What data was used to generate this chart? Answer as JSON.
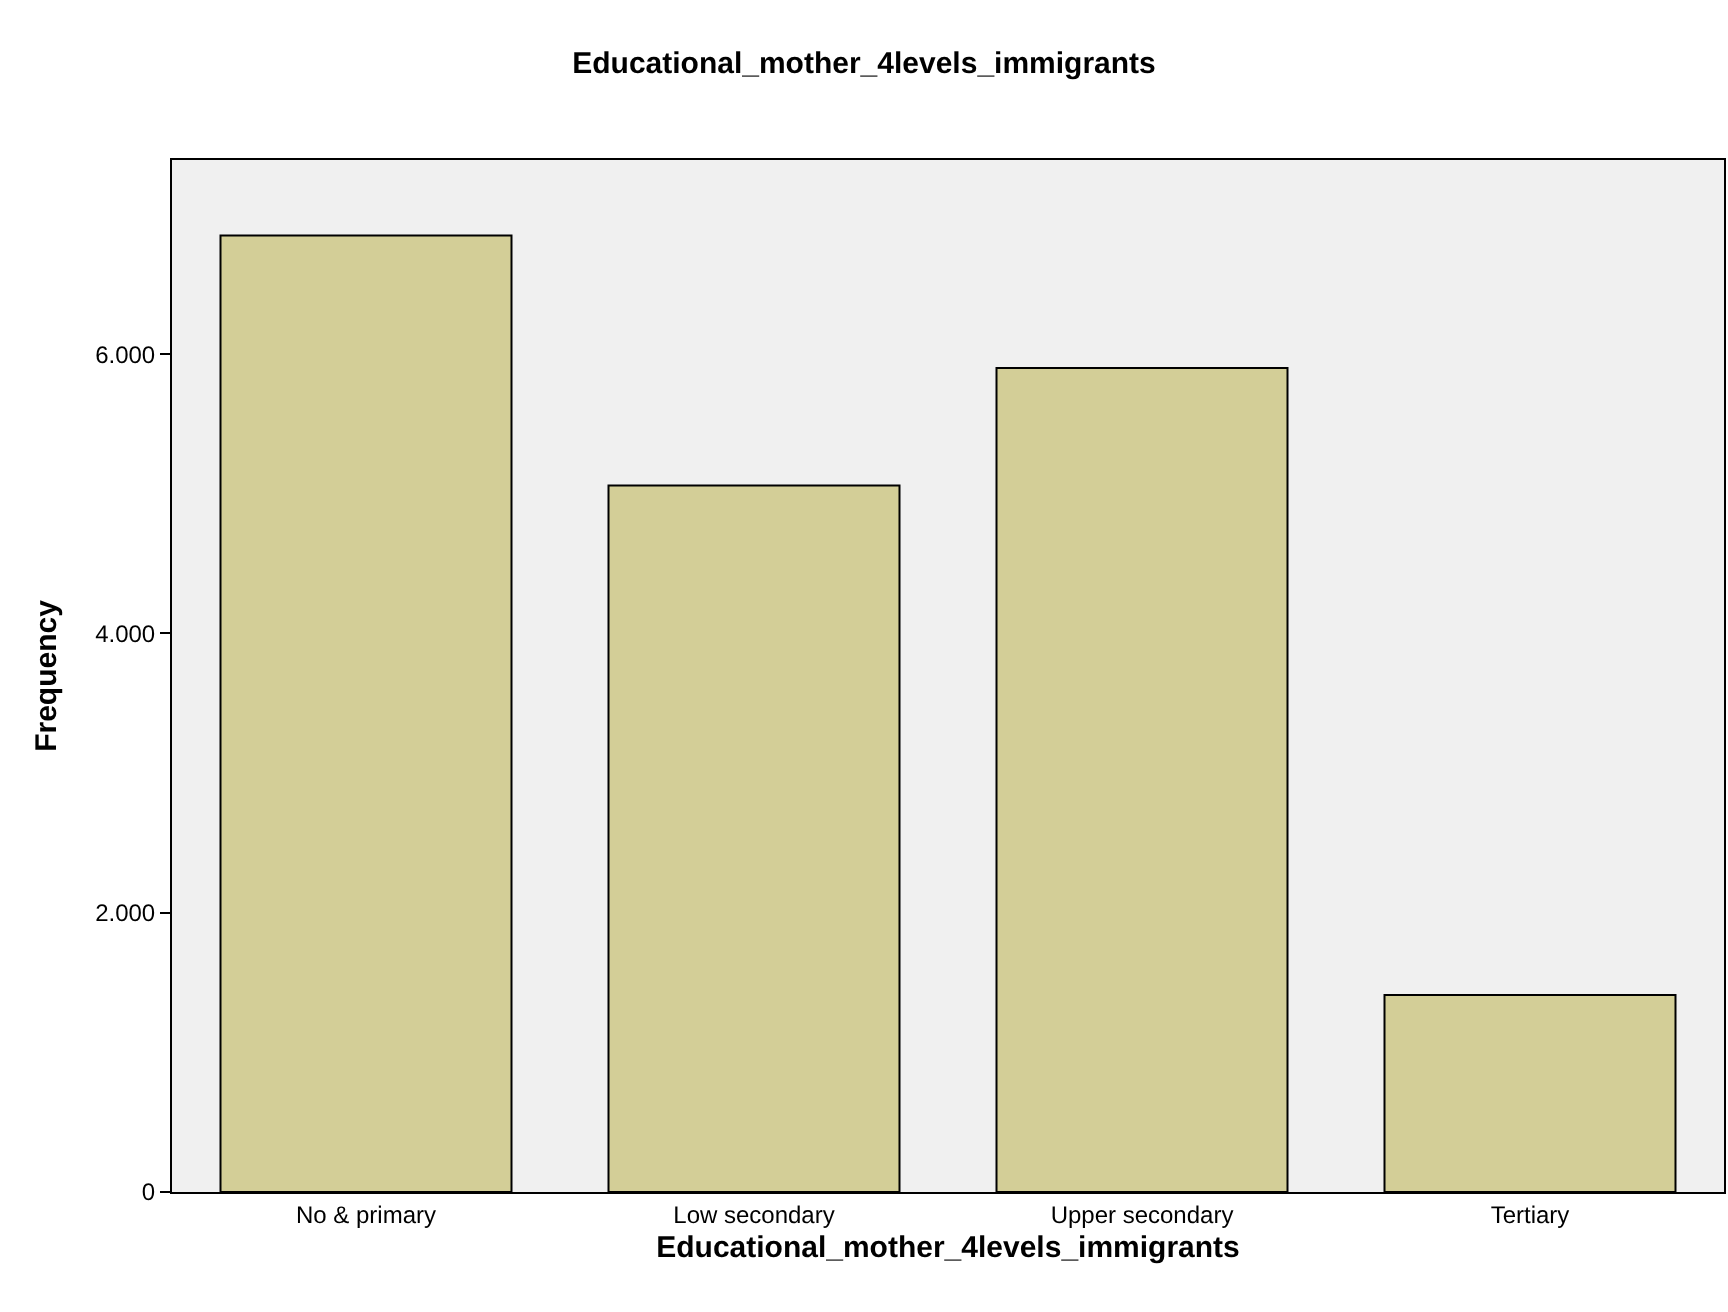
{
  "chart_data": {
    "type": "bar",
    "title": "Educational_mother_4levels_immigrants",
    "xlabel": "Educational_mother_4levels_immigrants",
    "ylabel": "Frequency",
    "categories": [
      "No & primary",
      "Low secondary",
      "Upper secondary",
      "Tertiary"
    ],
    "values": [
      6850,
      5060,
      5900,
      1410
    ],
    "color": "#d3ce97",
    "ylim": [
      0,
      7390
    ],
    "yticks": [
      0,
      {
        "value": 2000,
        "label": "2.000"
      },
      {
        "value": 4000,
        "label": "4.000"
      },
      {
        "value": 6000,
        "label": "6.000"
      }
    ],
    "grid": false
  }
}
